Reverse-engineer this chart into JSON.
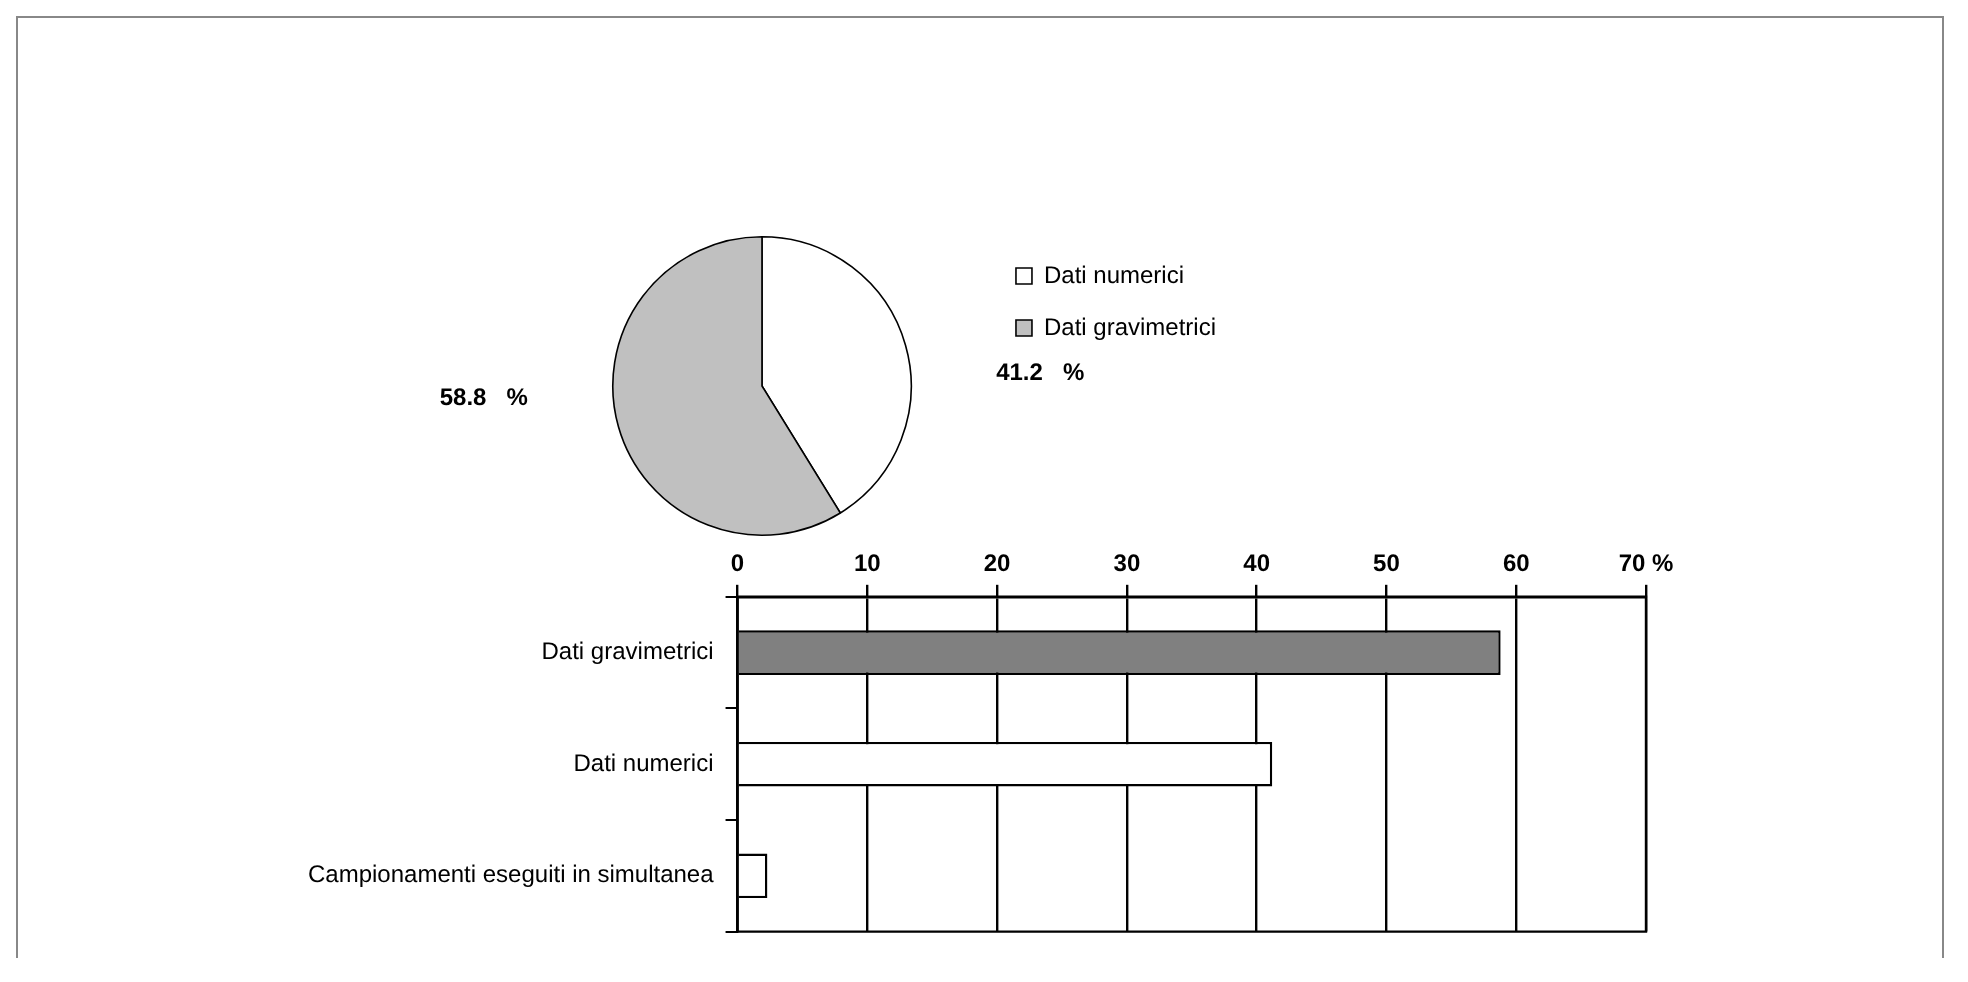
{
  "chart_data": [
    {
      "type": "pie",
      "categories": [
        "Dati numerici",
        "Dati gravimetrici"
      ],
      "values": [
        41.2,
        58.8
      ],
      "colors": [
        "#ffffff",
        "#c0c0c0"
      ],
      "value_labels": [
        "41.2   %",
        "58.8   %"
      ],
      "legend": "top right"
    },
    {
      "type": "bar",
      "orientation": "horizontal",
      "categories": [
        "Dati gravimetrici",
        "Dati numerici",
        "Campionamenti eseguiti in simultanea"
      ],
      "values": [
        58.8,
        41.2,
        2.3
      ],
      "colors": [
        "#808080",
        "#ffffff",
        "#ffffff"
      ],
      "xlim": [
        0,
        70
      ],
      "xticks": [
        0,
        10,
        20,
        30,
        40,
        50,
        60,
        {
          "value": 70,
          "label": "70 %"
        }
      ],
      "grid": "x"
    }
  ]
}
